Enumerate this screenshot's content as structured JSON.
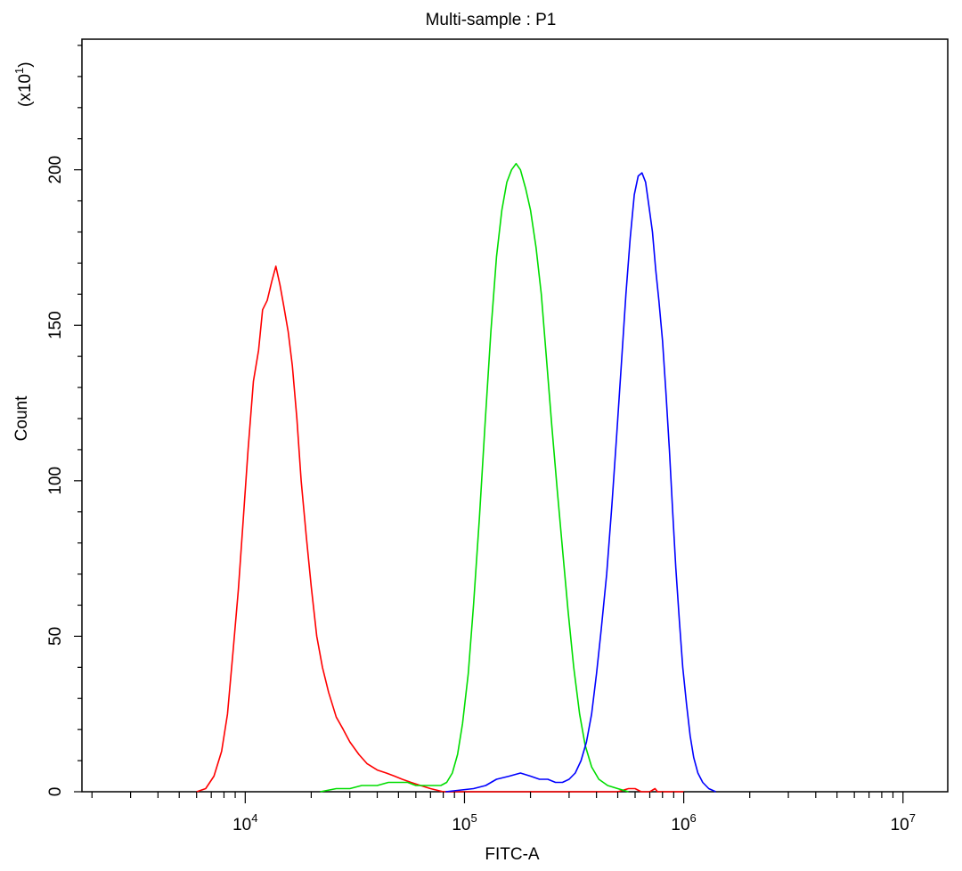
{
  "chart_data": {
    "type": "line",
    "title": "Multi-sample : P1",
    "xlabel": "FITC-A",
    "ylabel": "Count",
    "y_multiplier": "(x10",
    "y_multiplier_exp": "1",
    "y_multiplier_close": ")",
    "x_scale": "log",
    "xlim": [
      1800,
      16000000
    ],
    "ylim": [
      0,
      242
    ],
    "x_ticks": [
      {
        "value": 10000,
        "base": "10",
        "exp": "4"
      },
      {
        "value": 100000,
        "base": "10",
        "exp": "5"
      },
      {
        "value": 1000000,
        "base": "10",
        "exp": "6"
      },
      {
        "value": 10000000,
        "base": "10",
        "exp": "7"
      }
    ],
    "y_ticks": [
      {
        "value": 0,
        "label": "0"
      },
      {
        "value": 50,
        "label": "50"
      },
      {
        "value": 100,
        "label": "100"
      },
      {
        "value": 150,
        "label": "150"
      },
      {
        "value": 200,
        "label": "200"
      }
    ],
    "grid": false,
    "legend": "none",
    "series": [
      {
        "color": "#ff0000",
        "points": [
          [
            6000,
            0
          ],
          [
            6600,
            1
          ],
          [
            7200,
            5
          ],
          [
            7800,
            13
          ],
          [
            8300,
            25
          ],
          [
            8800,
            45
          ],
          [
            9300,
            65
          ],
          [
            9800,
            88
          ],
          [
            10300,
            110
          ],
          [
            10900,
            132
          ],
          [
            11500,
            142
          ],
          [
            12000,
            155
          ],
          [
            12600,
            158
          ],
          [
            13200,
            164
          ],
          [
            13800,
            169
          ],
          [
            14400,
            163
          ],
          [
            15000,
            156
          ],
          [
            15700,
            148
          ],
          [
            16400,
            137
          ],
          [
            17200,
            120
          ],
          [
            18000,
            100
          ],
          [
            19000,
            82
          ],
          [
            20000,
            66
          ],
          [
            21200,
            50
          ],
          [
            22500,
            40
          ],
          [
            24000,
            32
          ],
          [
            26000,
            24
          ],
          [
            28000,
            20
          ],
          [
            30000,
            16
          ],
          [
            33000,
            12
          ],
          [
            36000,
            9
          ],
          [
            40000,
            7
          ],
          [
            44000,
            6
          ],
          [
            48000,
            5
          ],
          [
            52000,
            4
          ],
          [
            57000,
            3
          ],
          [
            63000,
            2
          ],
          [
            70000,
            1
          ],
          [
            80000,
            0
          ],
          [
            200000,
            0
          ],
          [
            500000,
            0
          ],
          [
            560000,
            1
          ],
          [
            600000,
            1
          ],
          [
            640000,
            0
          ],
          [
            700000,
            0
          ],
          [
            740000,
            1
          ],
          [
            760000,
            0
          ],
          [
            1000000,
            0
          ]
        ]
      },
      {
        "color": "#00dd00",
        "points": [
          [
            22000,
            0
          ],
          [
            26000,
            1
          ],
          [
            30000,
            1
          ],
          [
            34000,
            2
          ],
          [
            40000,
            2
          ],
          [
            45000,
            3
          ],
          [
            50000,
            3
          ],
          [
            55000,
            3
          ],
          [
            60000,
            2
          ],
          [
            66000,
            2
          ],
          [
            72000,
            2
          ],
          [
            78000,
            2
          ],
          [
            83000,
            3
          ],
          [
            88000,
            6
          ],
          [
            93000,
            12
          ],
          [
            98000,
            22
          ],
          [
            104000,
            38
          ],
          [
            110000,
            60
          ],
          [
            117000,
            88
          ],
          [
            124000,
            118
          ],
          [
            132000,
            148
          ],
          [
            140000,
            172
          ],
          [
            148000,
            187
          ],
          [
            156000,
            196
          ],
          [
            164000,
            200
          ],
          [
            172000,
            202
          ],
          [
            180000,
            200
          ],
          [
            190000,
            194
          ],
          [
            200000,
            187
          ],
          [
            212000,
            175
          ],
          [
            224000,
            160
          ],
          [
            236000,
            140
          ],
          [
            250000,
            118
          ],
          [
            265000,
            97
          ],
          [
            280000,
            78
          ],
          [
            297000,
            58
          ],
          [
            315000,
            40
          ],
          [
            335000,
            25
          ],
          [
            355000,
            15
          ],
          [
            380000,
            8
          ],
          [
            410000,
            4
          ],
          [
            450000,
            2
          ],
          [
            500000,
            1
          ],
          [
            560000,
            0
          ]
        ]
      },
      {
        "color": "#0000ff",
        "points": [
          [
            82000,
            0
          ],
          [
            110000,
            1
          ],
          [
            125000,
            2
          ],
          [
            140000,
            4
          ],
          [
            160000,
            5
          ],
          [
            180000,
            6
          ],
          [
            200000,
            5
          ],
          [
            220000,
            4
          ],
          [
            240000,
            4
          ],
          [
            260000,
            3
          ],
          [
            280000,
            3
          ],
          [
            300000,
            4
          ],
          [
            320000,
            6
          ],
          [
            340000,
            10
          ],
          [
            360000,
            16
          ],
          [
            380000,
            25
          ],
          [
            400000,
            38
          ],
          [
            420000,
            52
          ],
          [
            445000,
            70
          ],
          [
            470000,
            92
          ],
          [
            495000,
            115
          ],
          [
            520000,
            138
          ],
          [
            545000,
            160
          ],
          [
            570000,
            178
          ],
          [
            595000,
            192
          ],
          [
            620000,
            198
          ],
          [
            645000,
            199
          ],
          [
            670000,
            196
          ],
          [
            695000,
            188
          ],
          [
            720000,
            180
          ],
          [
            745000,
            168
          ],
          [
            770000,
            158
          ],
          [
            800000,
            145
          ],
          [
            830000,
            128
          ],
          [
            860000,
            110
          ],
          [
            890000,
            90
          ],
          [
            920000,
            72
          ],
          [
            955000,
            55
          ],
          [
            990000,
            40
          ],
          [
            1030000,
            28
          ],
          [
            1070000,
            18
          ],
          [
            1110000,
            11
          ],
          [
            1160000,
            6
          ],
          [
            1220000,
            3
          ],
          [
            1300000,
            1
          ],
          [
            1400000,
            0
          ]
        ]
      }
    ]
  }
}
